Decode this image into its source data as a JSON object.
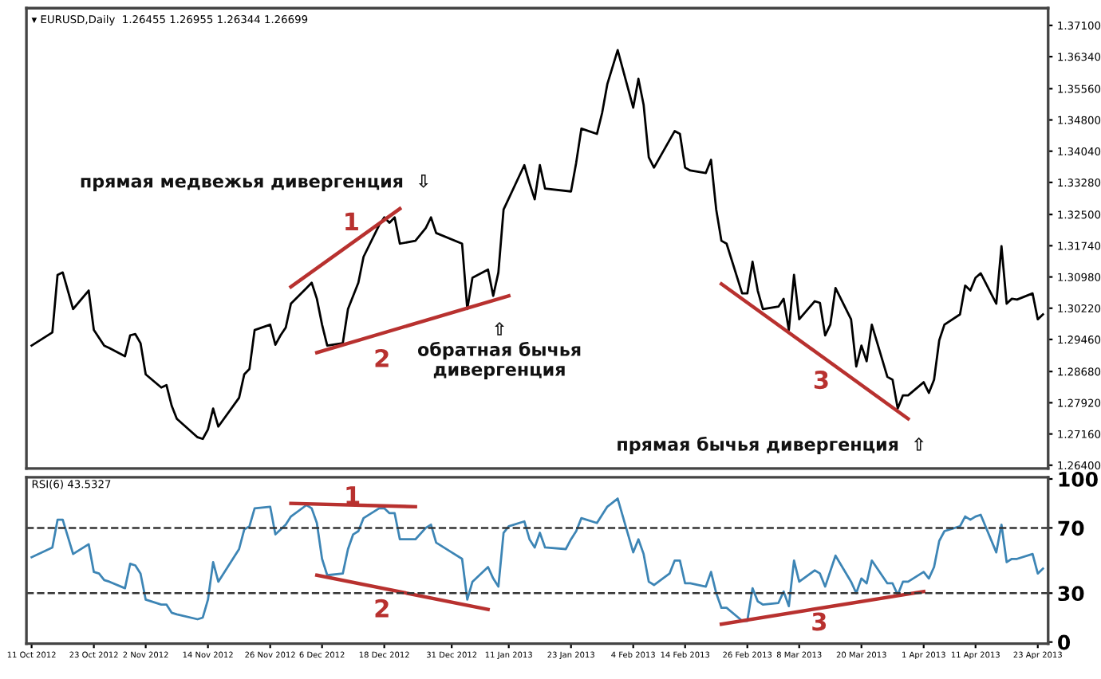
{
  "chart_data": [
    {
      "type": "line",
      "title": "▾ EURUSD,Daily  1.26455 1.26955 1.26344 1.26699",
      "xlim": [
        "2012-10-10",
        "2013-04-25"
      ],
      "ylim": [
        1.2632,
        1.3752
      ],
      "tick_labels": "y",
      "grid": false,
      "yticks": [
        {
          "value": 1.264,
          "label": "1.26400"
        },
        {
          "value": 1.2716,
          "label": "1.27160"
        },
        {
          "value": 1.2792,
          "label": "1.27920"
        },
        {
          "value": 1.2868,
          "label": "1.28680"
        },
        {
          "value": 1.2946,
          "label": "1.29460"
        },
        {
          "value": 1.3022,
          "label": "1.30220"
        },
        {
          "value": 1.3098,
          "label": "1.30980"
        },
        {
          "value": 1.3174,
          "label": "1.31740"
        },
        {
          "value": 1.325,
          "label": "1.32500"
        },
        {
          "value": 1.3328,
          "label": "1.33280"
        },
        {
          "value": 1.3404,
          "label": "1.34040"
        },
        {
          "value": 1.348,
          "label": "1.34800"
        },
        {
          "value": 1.3556,
          "label": "1.35560"
        },
        {
          "value": 1.3634,
          "label": "1.36340"
        },
        {
          "value": 1.371,
          "label": "1.37100"
        }
      ],
      "series": [
        {
          "color": "#000000",
          "x": [
            "2012-10-11",
            "2012-10-15",
            "2012-10-16",
            "2012-10-17",
            "2012-10-19",
            "2012-10-22",
            "2012-10-23",
            "2012-10-25",
            "2012-10-26",
            "2012-10-29",
            "2012-10-30",
            "2012-10-31",
            "2012-11-01",
            "2012-11-02",
            "2012-11-05",
            "2012-11-06",
            "2012-11-07",
            "2012-11-08",
            "2012-11-12",
            "2012-11-13",
            "2012-11-14",
            "2012-11-15",
            "2012-11-16",
            "2012-11-20",
            "2012-11-21",
            "2012-11-22",
            "2012-11-23",
            "2012-11-26",
            "2012-11-27",
            "2012-11-28",
            "2012-11-29",
            "2012-11-30",
            "2012-12-03",
            "2012-12-04",
            "2012-12-05",
            "2012-12-06",
            "2012-12-07",
            "2012-12-10",
            "2012-12-11",
            "2012-12-12",
            "2012-12-13",
            "2012-12-14",
            "2012-12-17",
            "2012-12-18",
            "2012-12-19",
            "2012-12-20",
            "2012-12-21",
            "2012-12-24",
            "2012-12-26",
            "2012-12-27",
            "2012-12-28",
            "2013-01-02",
            "2013-01-03",
            "2013-01-04",
            "2013-01-07",
            "2013-01-08",
            "2013-01-09",
            "2013-01-10",
            "2013-01-14",
            "2013-01-15",
            "2013-01-16",
            "2013-01-17",
            "2013-01-18",
            "2013-01-23",
            "2013-01-24",
            "2013-01-25",
            "2013-01-28",
            "2013-01-29",
            "2013-01-30",
            "2013-02-01",
            "2013-02-04",
            "2013-02-05",
            "2013-02-06",
            "2013-02-07",
            "2013-02-08",
            "2013-02-12",
            "2013-02-13",
            "2013-02-14",
            "2013-02-15",
            "2013-02-18",
            "2013-02-19",
            "2013-02-20",
            "2013-02-21",
            "2013-02-22",
            "2013-02-25",
            "2013-02-26",
            "2013-02-27",
            "2013-02-28",
            "2013-03-01",
            "2013-03-04",
            "2013-03-05",
            "2013-03-06",
            "2013-03-07",
            "2013-03-08",
            "2013-03-11",
            "2013-03-12",
            "2013-03-13",
            "2013-03-14",
            "2013-03-15",
            "2013-03-18",
            "2013-03-19",
            "2013-03-20",
            "2013-03-21",
            "2013-03-22",
            "2013-03-25",
            "2013-03-26",
            "2013-03-27",
            "2013-03-28",
            "2013-03-29",
            "2013-04-01",
            "2013-04-02",
            "2013-04-03",
            "2013-04-04",
            "2013-04-05",
            "2013-04-08",
            "2013-04-09",
            "2013-04-10",
            "2013-04-11",
            "2013-04-12",
            "2013-04-15",
            "2013-04-16",
            "2013-04-17",
            "2013-04-18",
            "2013-04-19",
            "2013-04-22",
            "2013-04-23",
            "2013-04-24"
          ],
          "values": [
            1.2931,
            1.2963,
            1.3103,
            1.3109,
            1.302,
            1.3065,
            1.2969,
            1.2931,
            1.2925,
            1.2905,
            1.2956,
            1.2959,
            1.2937,
            1.2861,
            1.2829,
            1.2835,
            1.2785,
            1.2753,
            1.2708,
            1.2704,
            1.2727,
            1.2778,
            1.2734,
            1.2804,
            1.2861,
            1.2874,
            1.2969,
            1.2982,
            1.2933,
            1.2956,
            1.2975,
            1.3033,
            1.3071,
            1.3084,
            1.3045,
            1.2982,
            1.2931,
            1.2937,
            1.302,
            1.3052,
            1.3084,
            1.3147,
            1.3224,
            1.3243,
            1.323,
            1.3243,
            1.3179,
            1.3186,
            1.3217,
            1.3243,
            1.3205,
            1.3179,
            1.302,
            1.3096,
            1.3116,
            1.3052,
            1.3109,
            1.3262,
            1.337,
            1.3326,
            1.3287,
            1.337,
            1.3313,
            1.3306,
            1.3376,
            1.3459,
            1.3446,
            1.3497,
            1.3567,
            1.365,
            1.351,
            1.358,
            1.3517,
            1.3389,
            1.3364,
            1.3453,
            1.3446,
            1.3364,
            1.3357,
            1.3351,
            1.3383,
            1.3262,
            1.3186,
            1.3179,
            1.3058,
            1.3058,
            1.3135,
            1.3065,
            1.302,
            1.3026,
            1.3045,
            1.2969,
            1.3103,
            1.2995,
            1.3039,
            1.3035,
            1.2956,
            1.2982,
            1.3071,
            1.2995,
            1.288,
            1.2931,
            1.2893,
            1.2982,
            1.2855,
            1.2848,
            1.2778,
            1.281,
            1.281,
            1.2842,
            1.2816,
            1.2848,
            1.2944,
            1.2982,
            1.3007,
            1.3077,
            1.3065,
            1.3096,
            1.3107,
            1.3033,
            1.3173,
            1.3033,
            1.3045,
            1.3043,
            1.3058,
            1.2995,
            1.3007
          ]
        },
        {
          "color": "#b8312f",
          "x": [
            "2012-11-30",
            "2012-12-21"
          ],
          "values": [
            1.3074,
            1.3264
          ]
        },
        {
          "color": "#b8312f",
          "x": [
            "2012-12-05",
            "2013-01-11"
          ],
          "values": [
            1.2914,
            1.3052
          ]
        },
        {
          "color": "#b8312f",
          "x": [
            "2013-02-21",
            "2013-03-29"
          ],
          "values": [
            1.3081,
            1.2753
          ]
        }
      ],
      "annotations": [
        "прямая медвежья дивергенция  ⇩",
        "⇧\nобратная бычья\nдивергенция",
        "прямая бычья дивергенция  ⇧",
        "1",
        "2",
        "3"
      ]
    },
    {
      "type": "line",
      "title": "RSI(6) 43.5327",
      "xlim": [
        "2012-10-10",
        "2013-04-25"
      ],
      "ylim": [
        -1,
        101
      ],
      "yticks": [
        0,
        30,
        70,
        100
      ],
      "grid": false,
      "xticks": [
        {
          "value": "2012-10-11",
          "label": "11 Oct 2012"
        },
        {
          "value": "2012-10-23",
          "label": "23 Oct 2012"
        },
        {
          "value": "2012-11-02",
          "label": "2 Nov 2012"
        },
        {
          "value": "2012-11-14",
          "label": "14 Nov 2012"
        },
        {
          "value": "2012-11-26",
          "label": "26 Nov 2012"
        },
        {
          "value": "2012-12-06",
          "label": "6 Dec 2012"
        },
        {
          "value": "2012-12-18",
          "label": "18 Dec 2012"
        },
        {
          "value": "2012-12-31",
          "label": "31 Dec 2012"
        },
        {
          "value": "2013-01-11",
          "label": "11 Jan 2013"
        },
        {
          "value": "2013-01-23",
          "label": "23 Jan 2013"
        },
        {
          "value": "2013-02-04",
          "label": "4 Feb 2013"
        },
        {
          "value": "2013-02-14",
          "label": "14 Feb 2013"
        },
        {
          "value": "2013-02-26",
          "label": "26 Feb 2013"
        },
        {
          "value": "2013-03-08",
          "label": "8 Mar 2013"
        },
        {
          "value": "2013-03-20",
          "label": "20 Mar 2013"
        },
        {
          "value": "2013-04-01",
          "label": "1 Apr 2013"
        },
        {
          "value": "2013-04-11",
          "label": "11 Apr 2013"
        },
        {
          "value": "2013-04-23",
          "label": "23 Apr 2013"
        }
      ],
      "ref_lines": [
        {
          "axis": "y",
          "value": 70,
          "color": "#333333",
          "line_style": "dashed"
        },
        {
          "axis": "y",
          "value": 30,
          "color": "#333333",
          "line_style": "dashed"
        }
      ],
      "series": [
        {
          "color": "#3d85b5",
          "x": [
            "2012-10-11",
            "2012-10-15",
            "2012-10-16",
            "2012-10-17",
            "2012-10-19",
            "2012-10-22",
            "2012-10-23",
            "2012-10-24",
            "2012-10-25",
            "2012-10-26",
            "2012-10-29",
            "2012-10-30",
            "2012-10-31",
            "2012-11-01",
            "2012-11-02",
            "2012-11-05",
            "2012-11-06",
            "2012-11-07",
            "2012-11-08",
            "2012-11-12",
            "2012-11-13",
            "2012-11-14",
            "2012-11-15",
            "2012-11-16",
            "2012-11-20",
            "2012-11-21",
            "2012-11-22",
            "2012-11-23",
            "2012-11-26",
            "2012-11-27",
            "2012-11-28",
            "2012-11-29",
            "2012-11-30",
            "2012-12-03",
            "2012-12-04",
            "2012-12-05",
            "2012-12-06",
            "2012-12-07",
            "2012-12-10",
            "2012-12-11",
            "2012-12-12",
            "2012-12-13",
            "2012-12-14",
            "2012-12-17",
            "2012-12-18",
            "2012-12-19",
            "2012-12-20",
            "2012-12-21",
            "2012-12-24",
            "2012-12-26",
            "2012-12-27",
            "2012-12-28",
            "2012-12-31",
            "2013-01-02",
            "2013-01-03",
            "2013-01-04",
            "2013-01-07",
            "2013-01-08",
            "2013-01-09",
            "2013-01-10",
            "2013-01-11",
            "2013-01-14",
            "2013-01-15",
            "2013-01-16",
            "2013-01-17",
            "2013-01-18",
            "2013-01-22",
            "2013-01-23",
            "2013-01-24",
            "2013-01-25",
            "2013-01-28",
            "2013-01-30",
            "2013-02-01",
            "2013-02-04",
            "2013-02-05",
            "2013-02-06",
            "2013-02-07",
            "2013-02-08",
            "2013-02-11",
            "2013-02-12",
            "2013-02-13",
            "2013-02-14",
            "2013-02-15",
            "2013-02-18",
            "2013-02-19",
            "2013-02-20",
            "2013-02-21",
            "2013-02-22",
            "2013-02-25",
            "2013-02-26",
            "2013-02-27",
            "2013-02-28",
            "2013-03-01",
            "2013-03-04",
            "2013-03-05",
            "2013-03-06",
            "2013-03-07",
            "2013-03-08",
            "2013-03-11",
            "2013-03-12",
            "2013-03-13",
            "2013-03-15",
            "2013-03-18",
            "2013-03-19",
            "2013-03-20",
            "2013-03-21",
            "2013-03-22",
            "2013-03-25",
            "2013-03-26",
            "2013-03-27",
            "2013-03-28",
            "2013-03-29",
            "2013-04-01",
            "2013-04-02",
            "2013-04-03",
            "2013-04-04",
            "2013-04-05",
            "2013-04-08",
            "2013-04-09",
            "2013-04-10",
            "2013-04-11",
            "2013-04-12",
            "2013-04-15",
            "2013-04-16",
            "2013-04-17",
            "2013-04-18",
            "2013-04-19",
            "2013-04-22",
            "2013-04-23",
            "2013-04-24"
          ],
          "values": [
            52,
            58,
            75,
            75,
            54,
            60,
            43,
            42,
            38,
            37,
            33,
            48,
            47,
            42,
            26,
            23,
            23,
            18,
            17,
            14,
            15,
            26,
            49,
            37,
            57,
            69,
            71,
            82,
            83,
            66,
            69,
            72,
            77,
            84,
            82,
            73,
            51,
            41,
            42,
            57,
            66,
            68,
            76,
            82,
            82,
            79,
            79,
            63,
            63,
            70,
            72,
            61,
            55,
            51,
            26,
            37,
            46,
            39,
            34,
            67,
            71,
            74,
            63,
            58,
            67,
            58,
            57,
            63,
            68,
            76,
            73,
            83,
            88,
            55,
            63,
            54,
            37,
            35,
            42,
            50,
            50,
            36,
            36,
            34,
            43,
            30,
            21,
            21,
            13,
            13,
            33,
            25,
            23,
            24,
            31,
            22,
            50,
            37,
            44,
            42,
            34,
            53,
            37,
            30,
            39,
            36,
            50,
            36,
            36,
            29,
            37,
            37,
            43,
            39,
            46,
            62,
            68,
            71,
            77,
            75,
            77,
            78,
            55,
            72,
            49,
            51,
            51,
            54,
            42,
            45
          ]
        },
        {
          "color": "#b8312f",
          "x": [
            "2012-11-30",
            "2012-12-24"
          ],
          "values": [
            85,
            83
          ]
        },
        {
          "color": "#b8312f",
          "x": [
            "2012-12-05",
            "2013-01-07"
          ],
          "values": [
            41,
            20
          ]
        },
        {
          "color": "#b8312f",
          "x": [
            "2013-02-21",
            "2013-04-01"
          ],
          "values": [
            11,
            31
          ]
        }
      ],
      "annotations": [
        "1",
        "2",
        "3"
      ]
    }
  ]
}
